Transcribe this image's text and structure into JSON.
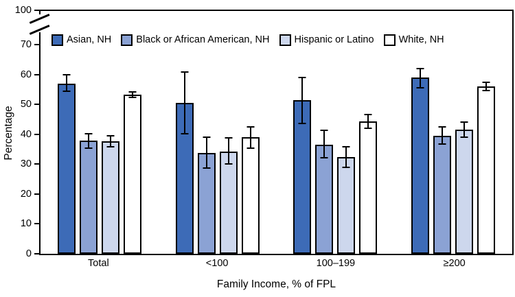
{
  "figure": {
    "background": "#ffffff",
    "frame_color": "#000000",
    "y_axis": {
      "title": "Percentage",
      "tick_labels": [
        "100",
        "70",
        "60",
        "50",
        "40",
        "30",
        "20",
        "10",
        "0"
      ],
      "axis_break_between": [
        70,
        100
      ]
    },
    "x_axis": {
      "title": "Family Income, % of FPL"
    }
  },
  "chart_data": {
    "type": "bar",
    "title": "",
    "xlabel": "Family Income, % of FPL",
    "ylabel": "Percentage",
    "ylim": [
      0,
      70
    ],
    "y_break_to": 100,
    "grid": false,
    "legend_position": "top-left-inside",
    "error_bars": true,
    "categories": [
      "Total",
      "<100",
      "100–199",
      "≥200"
    ],
    "series": [
      {
        "name": "Asian, NH",
        "color": "#3D6BB7",
        "values": [
          57.0,
          50.4,
          51.4,
          59.0
        ],
        "ci_low": [
          54.3,
          40.1,
          43.5,
          55.6
        ],
        "ci_high": [
          59.9,
          60.8,
          59.0,
          62.0
        ]
      },
      {
        "name": "Black or African American, NH",
        "color": "#8BA2D4",
        "values": [
          37.9,
          33.8,
          36.6,
          39.5
        ],
        "ci_low": [
          35.4,
          28.8,
          32.2,
          36.7
        ],
        "ci_high": [
          40.1,
          39.0,
          41.4,
          42.5
        ]
      },
      {
        "name": "Hispanic or Latino",
        "color": "#CDD7ED",
        "values": [
          37.6,
          34.1,
          32.3,
          41.5
        ],
        "ci_low": [
          35.9,
          30.0,
          28.9,
          39.0
        ],
        "ci_high": [
          39.5,
          38.8,
          35.8,
          44.0
        ]
      },
      {
        "name": "White, NH",
        "color": "#FFFFFF",
        "values": [
          53.3,
          39.0,
          44.3,
          56.0
        ],
        "ci_low": [
          52.3,
          35.3,
          42.0,
          54.7
        ],
        "ci_high": [
          54.2,
          42.4,
          46.7,
          57.3
        ]
      }
    ]
  }
}
